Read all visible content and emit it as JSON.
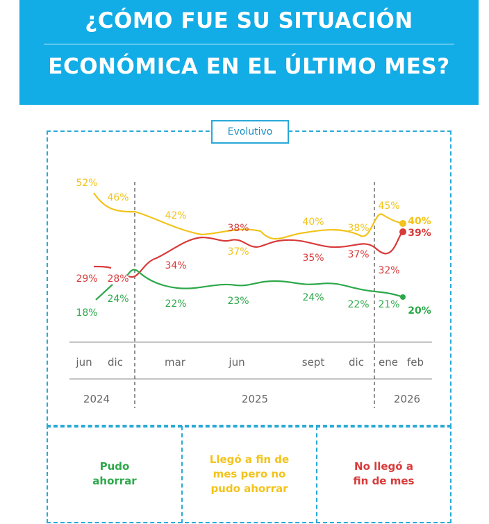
{
  "header": {
    "line1": "¿CÓMO FUE SU SITUACIÓN",
    "line2": "ECONÓMICA EN EL ÚLTIMO MES?"
  },
  "panel_tag": "Evolutivo",
  "colors": {
    "banner": "#12ace6",
    "frame": "#29a9d8",
    "green": "#2da84a",
    "yellow": "#f2c31a",
    "red": "#d83a3a",
    "axis": "#888888"
  },
  "chart_data": {
    "type": "line",
    "title": "Evolutivo",
    "categories": [
      "jun",
      "dic",
      "mar",
      "jun",
      "sept",
      "dic",
      "ene",
      "feb"
    ],
    "years": [
      {
        "label": "2024",
        "covers": [
          "jun",
          "dic"
        ]
      },
      {
        "label": "2025",
        "covers": [
          "mar",
          "jun",
          "sept",
          "dic"
        ]
      },
      {
        "label": "2026",
        "covers": [
          "ene",
          "feb"
        ]
      }
    ],
    "series": [
      {
        "name": "Pudo ahorrar",
        "color": "#2da84a",
        "values": [
          18,
          24,
          22,
          23,
          24,
          22,
          21,
          20
        ]
      },
      {
        "name": "Llegó a fin de mes pero no pudo ahorrar",
        "color": "#f2c31a",
        "values": [
          52,
          46,
          42,
          37,
          40,
          38,
          45,
          40
        ]
      },
      {
        "name": "No llegó a fin de mes",
        "color": "#d83a3a",
        "values": [
          29,
          28,
          34,
          38,
          35,
          37,
          32,
          39
        ]
      }
    ],
    "labels": {
      "green": [
        "18%",
        "24%",
        "22%",
        "23%",
        "24%",
        "22%",
        "21%",
        "20%"
      ],
      "yellow": [
        "52%",
        "46%",
        "42%",
        "37%",
        "40%",
        "38%",
        "45%",
        "40%"
      ],
      "red": [
        "29%",
        "28%",
        "34%",
        "38%",
        "35%",
        "37%",
        "32%",
        "39%"
      ]
    },
    "ylim": [
      15,
      55
    ],
    "grid": false
  },
  "legend": {
    "green": [
      "Pudo",
      "ahorrar"
    ],
    "yellow": [
      "Llegó a fin de",
      "mes pero no",
      "pudo ahorrar"
    ],
    "red": [
      "No llegó a",
      "fin de mes"
    ]
  }
}
